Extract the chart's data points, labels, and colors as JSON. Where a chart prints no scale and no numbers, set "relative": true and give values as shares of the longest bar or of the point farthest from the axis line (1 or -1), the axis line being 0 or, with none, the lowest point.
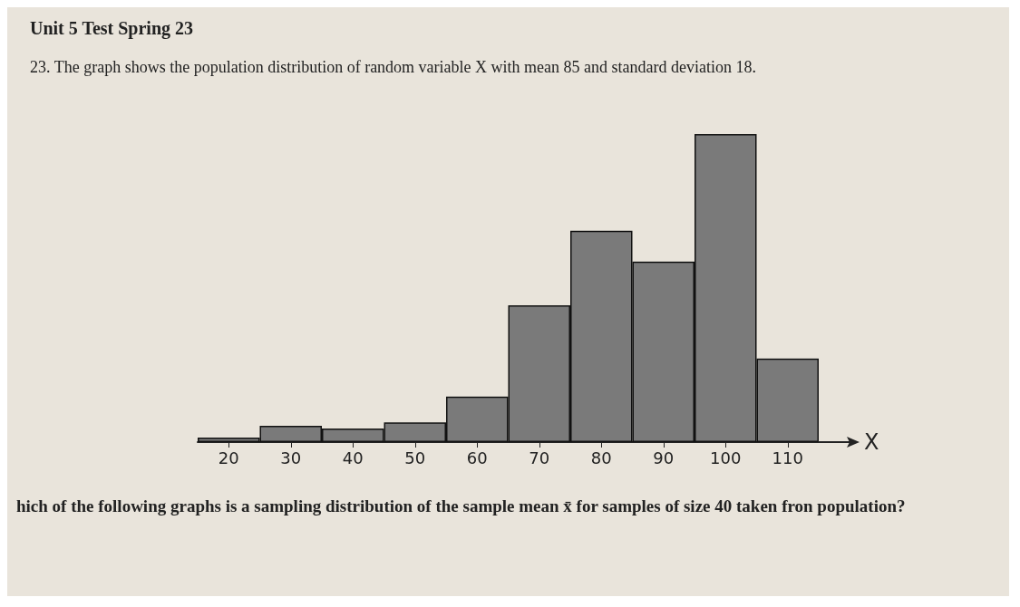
{
  "chart_data": {
    "type": "bar",
    "title": "Unit 5 Test Spring 23",
    "subtitle": "23. The graph shows the population distribution of random variable X with mean 85 and standard deviation 18.",
    "xlabel": "X",
    "relative": true,
    "categories": [
      "20",
      "30",
      "40",
      "50",
      "60",
      "70",
      "80",
      "90",
      "100",
      "110"
    ],
    "values": [
      0.015,
      0.053,
      0.044,
      0.064,
      0.148,
      0.444,
      0.686,
      0.586,
      1,
      0.271
    ],
    "color": "#7a7a7a",
    "grid": false,
    "annotations": [
      "hich of the following graphs is a sampling distribution of the sample mean x̄ for samples of size 40 taken fron population?"
    ]
  }
}
